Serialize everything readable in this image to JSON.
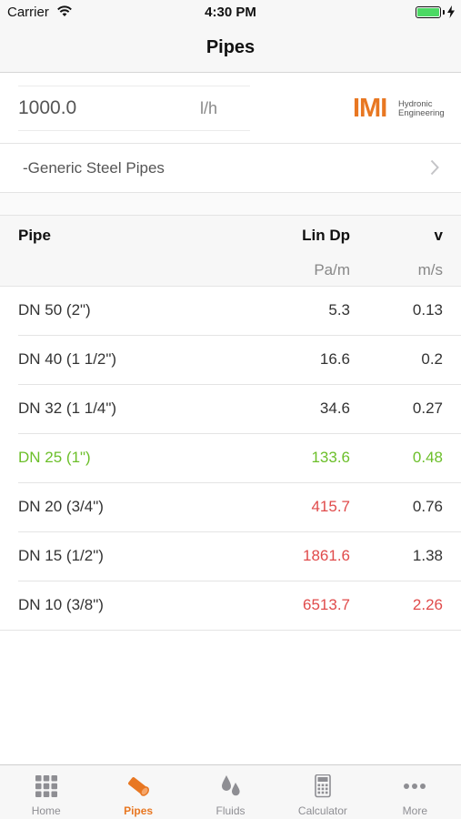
{
  "status_bar": {
    "carrier": "Carrier",
    "time": "4:30 PM",
    "battery_level": 1.0,
    "battery_color": "#4cd964"
  },
  "nav": {
    "title": "Pipes"
  },
  "flow": {
    "value": "1000.0",
    "unit": "l/h"
  },
  "logo": {
    "mark": "IMI",
    "line1": "Hydronic",
    "line2": "Engineering",
    "color": "#e87722"
  },
  "pipe_series": {
    "label": "-Generic Steel Pipes",
    "icon": "chevron-right-icon"
  },
  "table": {
    "headers": {
      "pipe": "Pipe",
      "lindp": "Lin Dp",
      "v": "v"
    },
    "units": {
      "lindp": "Pa/m",
      "v": "m/s"
    },
    "colors": {
      "normal": "#333333",
      "good": "#6cbf2a",
      "bad": "#e04b4b"
    },
    "rows": [
      {
        "pipe": "DN 50 (2\")",
        "lindp": "5.3",
        "v": "0.13",
        "pipe_state": "normal",
        "lindp_state": "normal",
        "v_state": "normal"
      },
      {
        "pipe": "DN 40 (1 1/2\")",
        "lindp": "16.6",
        "v": "0.2",
        "pipe_state": "normal",
        "lindp_state": "normal",
        "v_state": "normal"
      },
      {
        "pipe": "DN 32 (1 1/4\")",
        "lindp": "34.6",
        "v": "0.27",
        "pipe_state": "normal",
        "lindp_state": "normal",
        "v_state": "normal"
      },
      {
        "pipe": "DN 25 (1\")",
        "lindp": "133.6",
        "v": "0.48",
        "pipe_state": "good",
        "lindp_state": "good",
        "v_state": "good"
      },
      {
        "pipe": "DN 20 (3/4\")",
        "lindp": "415.7",
        "v": "0.76",
        "pipe_state": "normal",
        "lindp_state": "bad",
        "v_state": "normal"
      },
      {
        "pipe": "DN 15 (1/2\")",
        "lindp": "1861.6",
        "v": "1.38",
        "pipe_state": "normal",
        "lindp_state": "bad",
        "v_state": "normal"
      },
      {
        "pipe": "DN 10 (3/8\")",
        "lindp": "6513.7",
        "v": "2.26",
        "pipe_state": "normal",
        "lindp_state": "bad",
        "v_state": "bad"
      }
    ]
  },
  "tab_bar": {
    "active_color": "#e87722",
    "inactive_color": "#8e8e93",
    "tabs": [
      {
        "label": "Home",
        "icon": "grid-icon",
        "active": false
      },
      {
        "label": "Pipes",
        "icon": "pipe-icon",
        "active": true
      },
      {
        "label": "Fluids",
        "icon": "droplets-icon",
        "active": false
      },
      {
        "label": "Calculator",
        "icon": "calculator-icon",
        "active": false
      },
      {
        "label": "More",
        "icon": "more-dots-icon",
        "active": false
      }
    ]
  }
}
